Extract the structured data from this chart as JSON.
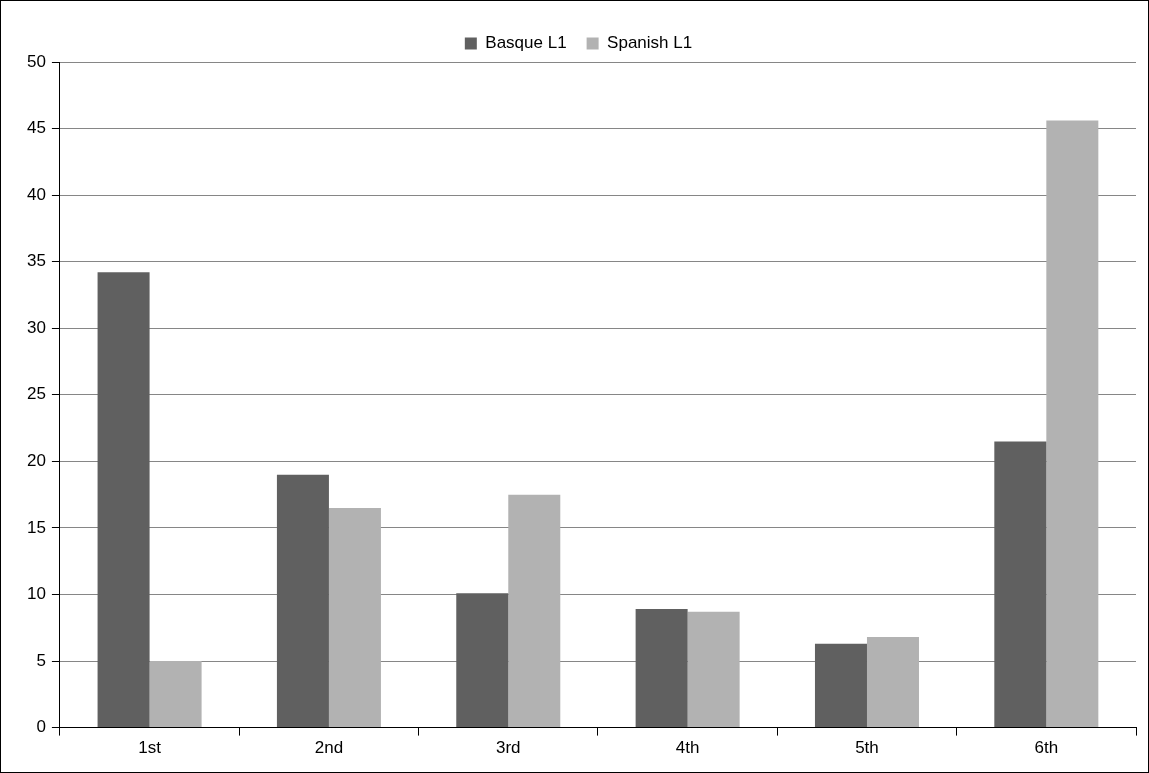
{
  "chart_data": {
    "type": "bar",
    "categories": [
      "1st",
      "2nd",
      "3rd",
      "4th",
      "5th",
      "6th"
    ],
    "series": [
      {
        "name": "Basque L1",
        "color": "#606060",
        "values": [
          34.2,
          19.0,
          10.1,
          8.9,
          6.3,
          21.5
        ]
      },
      {
        "name": "Spanish L1",
        "color": "#b2b2b2",
        "values": [
          5.0,
          16.5,
          17.5,
          8.7,
          6.8,
          45.6
        ]
      }
    ],
    "ylim": [
      0,
      50
    ],
    "yticks": [
      0,
      5,
      10,
      15,
      20,
      25,
      30,
      35,
      40,
      45,
      50
    ],
    "grid": "y",
    "legend": "top"
  }
}
